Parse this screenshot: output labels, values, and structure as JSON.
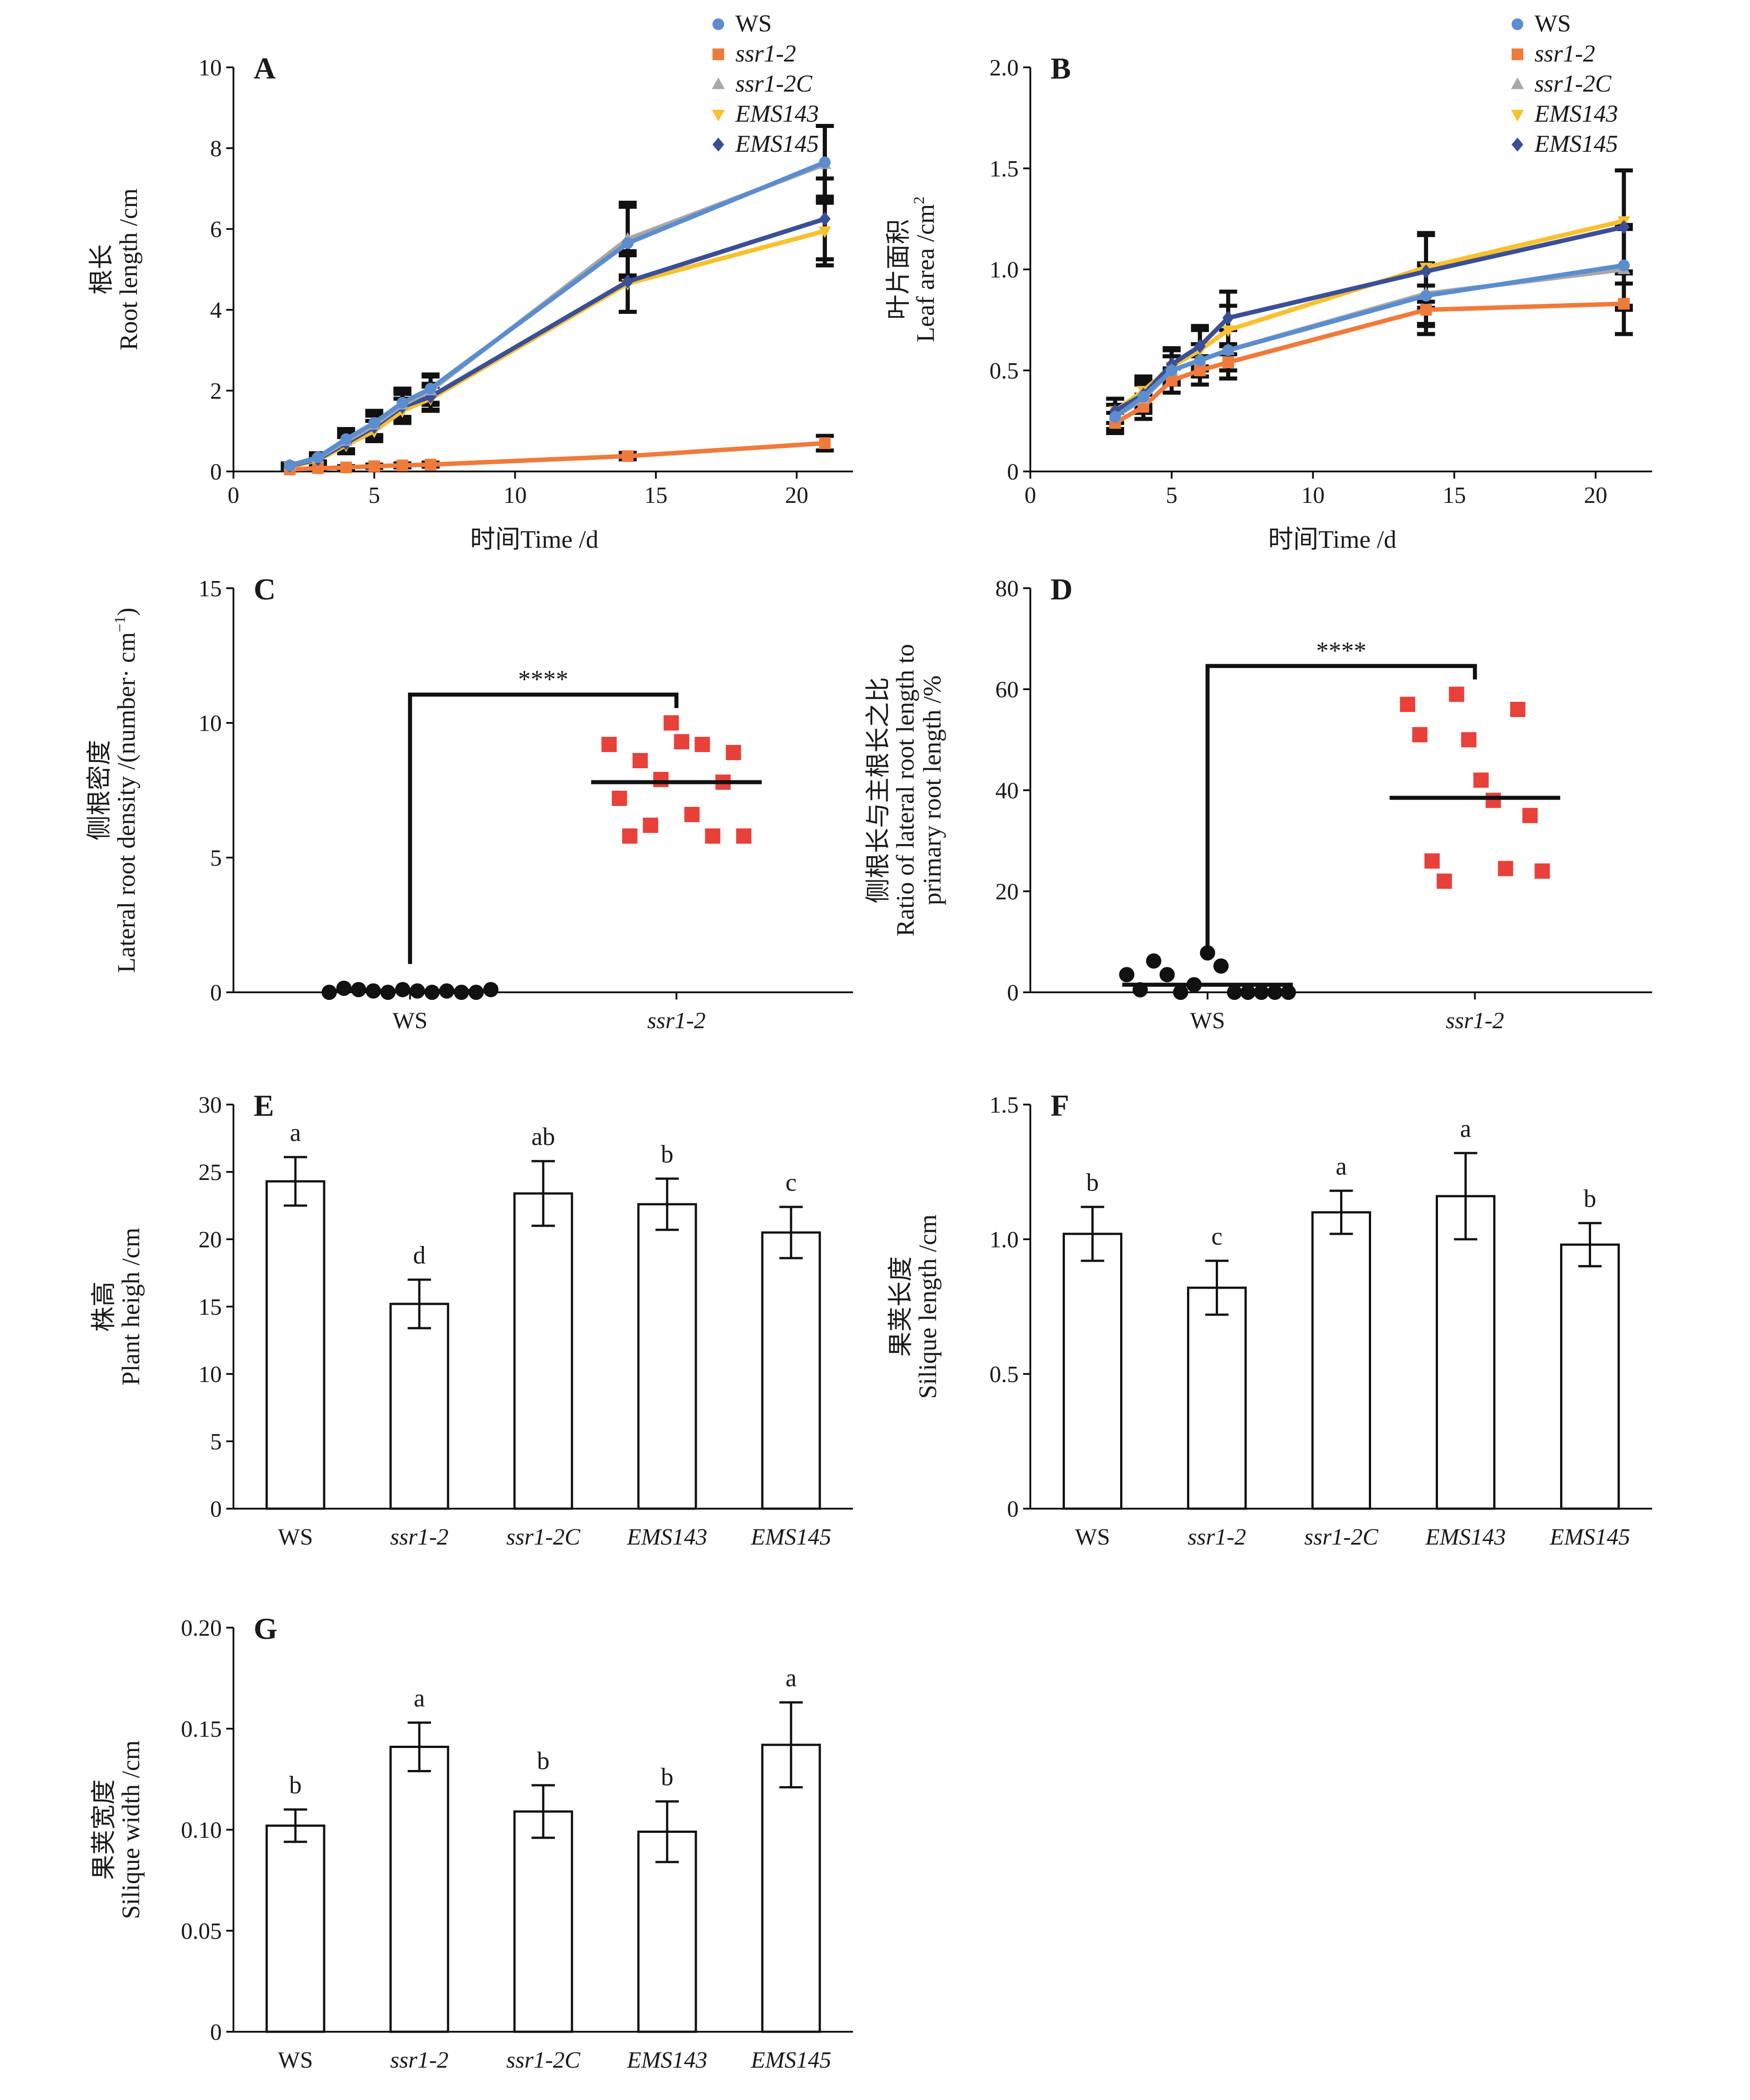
{
  "figure": {
    "colors": {
      "WS": "#5b8dcf",
      "ssr1-2": "#ef7b3b",
      "ssr1-2C": "#a8a8a8",
      "EMS143": "#f7c12f",
      "EMS145": "#3b4f97",
      "scatter_ws": "#111111",
      "scatter_ssr": "#e8413a",
      "axis": "#111111",
      "errbar": "#111111"
    }
  },
  "chart_data": [
    {
      "panel": "A",
      "type": "line",
      "ylabel_cn": "根长",
      "ylabel_en": "Root length /cm",
      "xlabel": "时间Time /d",
      "xlim": [
        0,
        22
      ],
      "ylim": [
        0,
        10
      ],
      "xticks": [
        0,
        5,
        10,
        15,
        20
      ],
      "yticks": [
        0,
        2,
        4,
        6,
        8,
        10
      ],
      "legend_position": "top-right",
      "series": [
        {
          "name": "WS",
          "marker": "circle",
          "x": [
            2,
            3,
            4,
            5,
            6,
            7,
            14,
            21
          ],
          "y": [
            0.15,
            0.35,
            0.8,
            1.2,
            1.7,
            2.05,
            5.65,
            7.65
          ],
          "err": [
            0.05,
            0.1,
            0.25,
            0.3,
            0.35,
            0.35,
            0.9,
            0.9
          ]
        },
        {
          "name": "ssr1-2",
          "marker": "square",
          "x": [
            2,
            3,
            4,
            5,
            6,
            7,
            14,
            21
          ],
          "y": [
            0.05,
            0.08,
            0.1,
            0.13,
            0.15,
            0.17,
            0.38,
            0.7
          ],
          "err": [
            0.02,
            0.03,
            0.03,
            0.04,
            0.05,
            0.05,
            0.08,
            0.18
          ]
        },
        {
          "name": "ssr1-2C",
          "marker": "triangle",
          "x": [
            2,
            3,
            4,
            5,
            6,
            7,
            14,
            21
          ],
          "y": [
            0.15,
            0.33,
            0.75,
            1.15,
            1.65,
            2.0,
            5.75,
            7.6
          ],
          "err": [
            0.05,
            0.1,
            0.25,
            0.3,
            0.35,
            0.35,
            0.9,
            0.95
          ]
        },
        {
          "name": "EMS143",
          "marker": "triangle-down",
          "x": [
            2,
            3,
            4,
            5,
            6,
            7,
            14,
            21
          ],
          "y": [
            0.12,
            0.28,
            0.65,
            1.0,
            1.5,
            1.8,
            4.65,
            5.95
          ],
          "err": [
            0.05,
            0.1,
            0.2,
            0.25,
            0.3,
            0.3,
            0.7,
            0.85
          ]
        },
        {
          "name": "EMS145",
          "marker": "diamond",
          "x": [
            2,
            3,
            4,
            5,
            6,
            7,
            14,
            21
          ],
          "y": [
            0.14,
            0.3,
            0.7,
            1.1,
            1.6,
            1.85,
            4.7,
            6.25
          ],
          "err": [
            0.05,
            0.1,
            0.22,
            0.28,
            0.32,
            0.32,
            0.75,
            1.0
          ]
        }
      ]
    },
    {
      "panel": "B",
      "type": "line",
      "ylabel_cn": "叶片面积",
      "ylabel_en": "Leaf area /cm",
      "ylabel_sup": "2",
      "xlabel": "时间Time /d",
      "xlim": [
        0,
        22
      ],
      "ylim": [
        0,
        2.0
      ],
      "xticks": [
        0,
        5,
        10,
        15,
        20
      ],
      "yticks": [
        "0",
        "0.5",
        "1.0",
        "1.5",
        "2.0"
      ],
      "legend_position": "top-right",
      "series": [
        {
          "name": "WS",
          "marker": "circle",
          "x": [
            3,
            4,
            5,
            6,
            7,
            14,
            21
          ],
          "y": [
            0.27,
            0.37,
            0.5,
            0.55,
            0.6,
            0.87,
            1.02
          ],
          "err": [
            0.06,
            0.07,
            0.07,
            0.08,
            0.1,
            0.15,
            0.2
          ]
        },
        {
          "name": "ssr1-2",
          "marker": "square",
          "x": [
            3,
            4,
            5,
            6,
            7,
            14,
            21
          ],
          "y": [
            0.24,
            0.32,
            0.45,
            0.5,
            0.54,
            0.8,
            0.83
          ],
          "err": [
            0.05,
            0.06,
            0.06,
            0.07,
            0.08,
            0.12,
            0.15
          ]
        },
        {
          "name": "ssr1-2C",
          "marker": "triangle",
          "x": [
            3,
            4,
            5,
            6,
            7,
            14,
            21
          ],
          "y": [
            0.27,
            0.36,
            0.5,
            0.55,
            0.6,
            0.88,
            1.0
          ],
          "err": [
            0.06,
            0.07,
            0.07,
            0.08,
            0.1,
            0.15,
            0.2
          ]
        },
        {
          "name": "EMS143",
          "marker": "triangle-down",
          "x": [
            3,
            4,
            5,
            6,
            7,
            14,
            21
          ],
          "y": [
            0.3,
            0.4,
            0.52,
            0.6,
            0.7,
            1.01,
            1.24
          ],
          "err": [
            0.06,
            0.07,
            0.08,
            0.1,
            0.12,
            0.17,
            0.25
          ]
        },
        {
          "name": "EMS145",
          "marker": "diamond",
          "x": [
            3,
            4,
            5,
            6,
            7,
            14,
            21
          ],
          "y": [
            0.3,
            0.38,
            0.53,
            0.62,
            0.76,
            0.99,
            1.21
          ],
          "err": [
            0.06,
            0.07,
            0.08,
            0.1,
            0.13,
            0.18,
            0.28
          ]
        }
      ]
    },
    {
      "panel": "C",
      "type": "scatter",
      "ylabel_cn": "侧根密度",
      "ylabel_en": "Lateral root density /(number· cm",
      "ylabel_sup": "−1",
      "ylabel_tail": ")",
      "ylim": [
        0,
        15
      ],
      "yticks": [
        0,
        5,
        10,
        15
      ],
      "categories": [
        "WS",
        "ssr1-2"
      ],
      "groups": [
        {
          "name": "WS",
          "marker": "circle",
          "mean": 0.05,
          "points": [
            0.0,
            0.15,
            0.1,
            0.05,
            0.0,
            0.1,
            0.05,
            0.0,
            0.05,
            0.0,
            0.0,
            0.1
          ]
        },
        {
          "name": "ssr1-2",
          "marker": "square",
          "mean": 7.8,
          "points": [
            9.2,
            7.2,
            5.8,
            8.6,
            6.2,
            7.9,
            10.0,
            9.3,
            6.6,
            9.2,
            5.8,
            7.8,
            8.9,
            5.8
          ]
        }
      ],
      "significance": "****"
    },
    {
      "panel": "D",
      "type": "scatter",
      "ylabel_cn": "侧根长与主根长之比",
      "ylabel_en1": "Ratio of lateral root length to",
      "ylabel_en2": "primary root length /%",
      "ylim": [
        0,
        80
      ],
      "yticks": [
        0,
        20,
        40,
        60,
        80
      ],
      "categories": [
        "WS",
        "ssr1-2"
      ],
      "groups": [
        {
          "name": "WS",
          "marker": "circle",
          "mean": 1.5,
          "points": [
            3.5,
            0.5,
            6.2,
            3.5,
            0.0,
            1.5,
            7.8,
            5.2,
            0.0,
            0.0,
            0.0,
            0.0,
            0.0
          ]
        },
        {
          "name": "ssr1-2",
          "marker": "square",
          "mean": 38.5,
          "points": [
            57.0,
            51.0,
            26.0,
            22.0,
            59.0,
            50.0,
            42.0,
            38.0,
            24.5,
            56.0,
            35.0,
            24.0
          ]
        }
      ],
      "significance": "****"
    },
    {
      "panel": "E",
      "type": "bar",
      "ylabel_cn": "株高",
      "ylabel_en": "Plant heigh /cm",
      "ylim": [
        0,
        30
      ],
      "yticks": [
        0,
        5,
        10,
        15,
        20,
        25,
        30
      ],
      "categories": [
        "WS",
        "ssr1-2",
        "ssr1-2C",
        "EMS143",
        "EMS145"
      ],
      "values": [
        24.3,
        15.2,
        23.4,
        22.6,
        20.5
      ],
      "errors": [
        1.8,
        1.8,
        2.4,
        1.9,
        1.9
      ],
      "letters": [
        "a",
        "d",
        "ab",
        "b",
        "c"
      ]
    },
    {
      "panel": "F",
      "type": "bar",
      "ylabel_cn": "果荚长度",
      "ylabel_en": "Silique length /cm",
      "ylim": [
        0,
        1.5
      ],
      "yticks": [
        "0",
        "0.5",
        "1.0",
        "1.5"
      ],
      "categories": [
        "WS",
        "ssr1-2",
        "ssr1-2C",
        "EMS143",
        "EMS145"
      ],
      "values": [
        1.02,
        0.82,
        1.1,
        1.16,
        0.98
      ],
      "errors": [
        0.1,
        0.1,
        0.08,
        0.16,
        0.08
      ],
      "letters": [
        "b",
        "c",
        "a",
        "a",
        "b"
      ]
    },
    {
      "panel": "G",
      "type": "bar",
      "ylabel_cn": "果荚宽度",
      "ylabel_en": "Silique width /cm",
      "ylim": [
        0,
        0.2
      ],
      "yticks": [
        "0",
        "0.05",
        "0.10",
        "0.15",
        "0.20"
      ],
      "categories": [
        "WS",
        "ssr1-2",
        "ssr1-2C",
        "EMS143",
        "EMS145"
      ],
      "values": [
        0.102,
        0.141,
        0.109,
        0.099,
        0.142
      ],
      "errors": [
        0.008,
        0.012,
        0.013,
        0.015,
        0.021
      ],
      "letters": [
        "b",
        "a",
        "b",
        "b",
        "a"
      ]
    }
  ]
}
